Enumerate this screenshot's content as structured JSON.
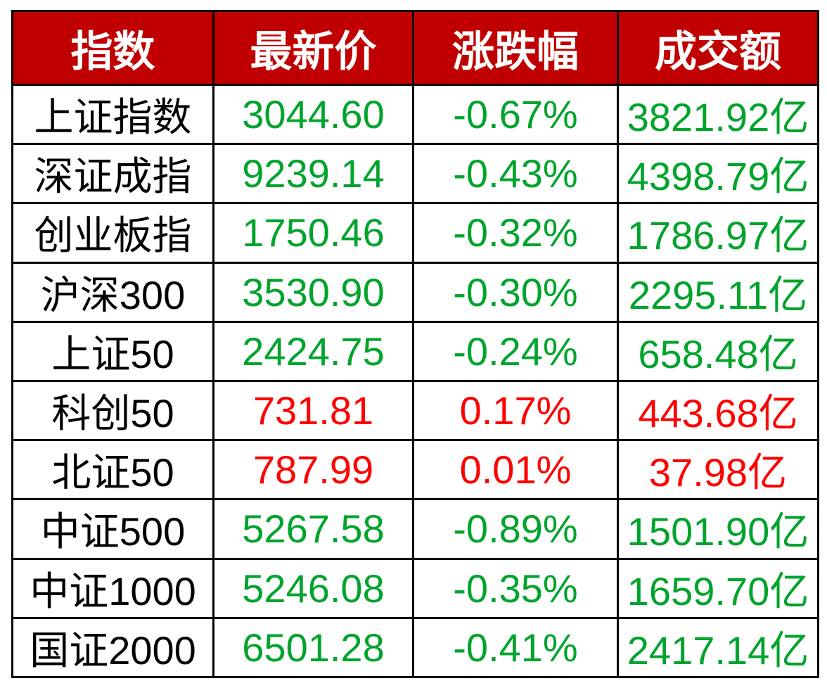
{
  "chart_data": {
    "type": "table",
    "columns": [
      "指数",
      "最新价",
      "涨跌幅",
      "成交额"
    ],
    "rows": [
      {
        "name": "上证指数",
        "price": "3044.60",
        "change": "-0.67%",
        "turnover": "3821.92亿",
        "trend": "down"
      },
      {
        "name": "深证成指",
        "price": "9239.14",
        "change": "-0.43%",
        "turnover": "4398.79亿",
        "trend": "down"
      },
      {
        "name": "创业板指",
        "price": "1750.46",
        "change": "-0.32%",
        "turnover": "1786.97亿",
        "trend": "down"
      },
      {
        "name": "沪深300",
        "price": "3530.90",
        "change": "-0.30%",
        "turnover": "2295.11亿",
        "trend": "down"
      },
      {
        "name": "上证50",
        "price": "2424.75",
        "change": "-0.24%",
        "turnover": "658.48亿",
        "trend": "down"
      },
      {
        "name": "科创50",
        "price": "731.81",
        "change": "0.17%",
        "turnover": "443.68亿",
        "trend": "up"
      },
      {
        "name": "北证50",
        "price": "787.99",
        "change": "0.01%",
        "turnover": "37.98亿",
        "trend": "up"
      },
      {
        "name": "中证500",
        "price": "5267.58",
        "change": "-0.89%",
        "turnover": "1501.90亿",
        "trend": "down"
      },
      {
        "name": "中证1000",
        "price": "5246.08",
        "change": "-0.35%",
        "turnover": "1659.70亿",
        "trend": "down"
      },
      {
        "name": "国证2000",
        "price": "6501.28",
        "change": "-0.41%",
        "turnover": "2417.14亿",
        "trend": "down"
      }
    ]
  },
  "colors": {
    "header_bg": "#C00000",
    "header_text": "#FFFFFF",
    "up_red": "#FF0000",
    "down_green": "#00A42C",
    "border": "#000000"
  }
}
